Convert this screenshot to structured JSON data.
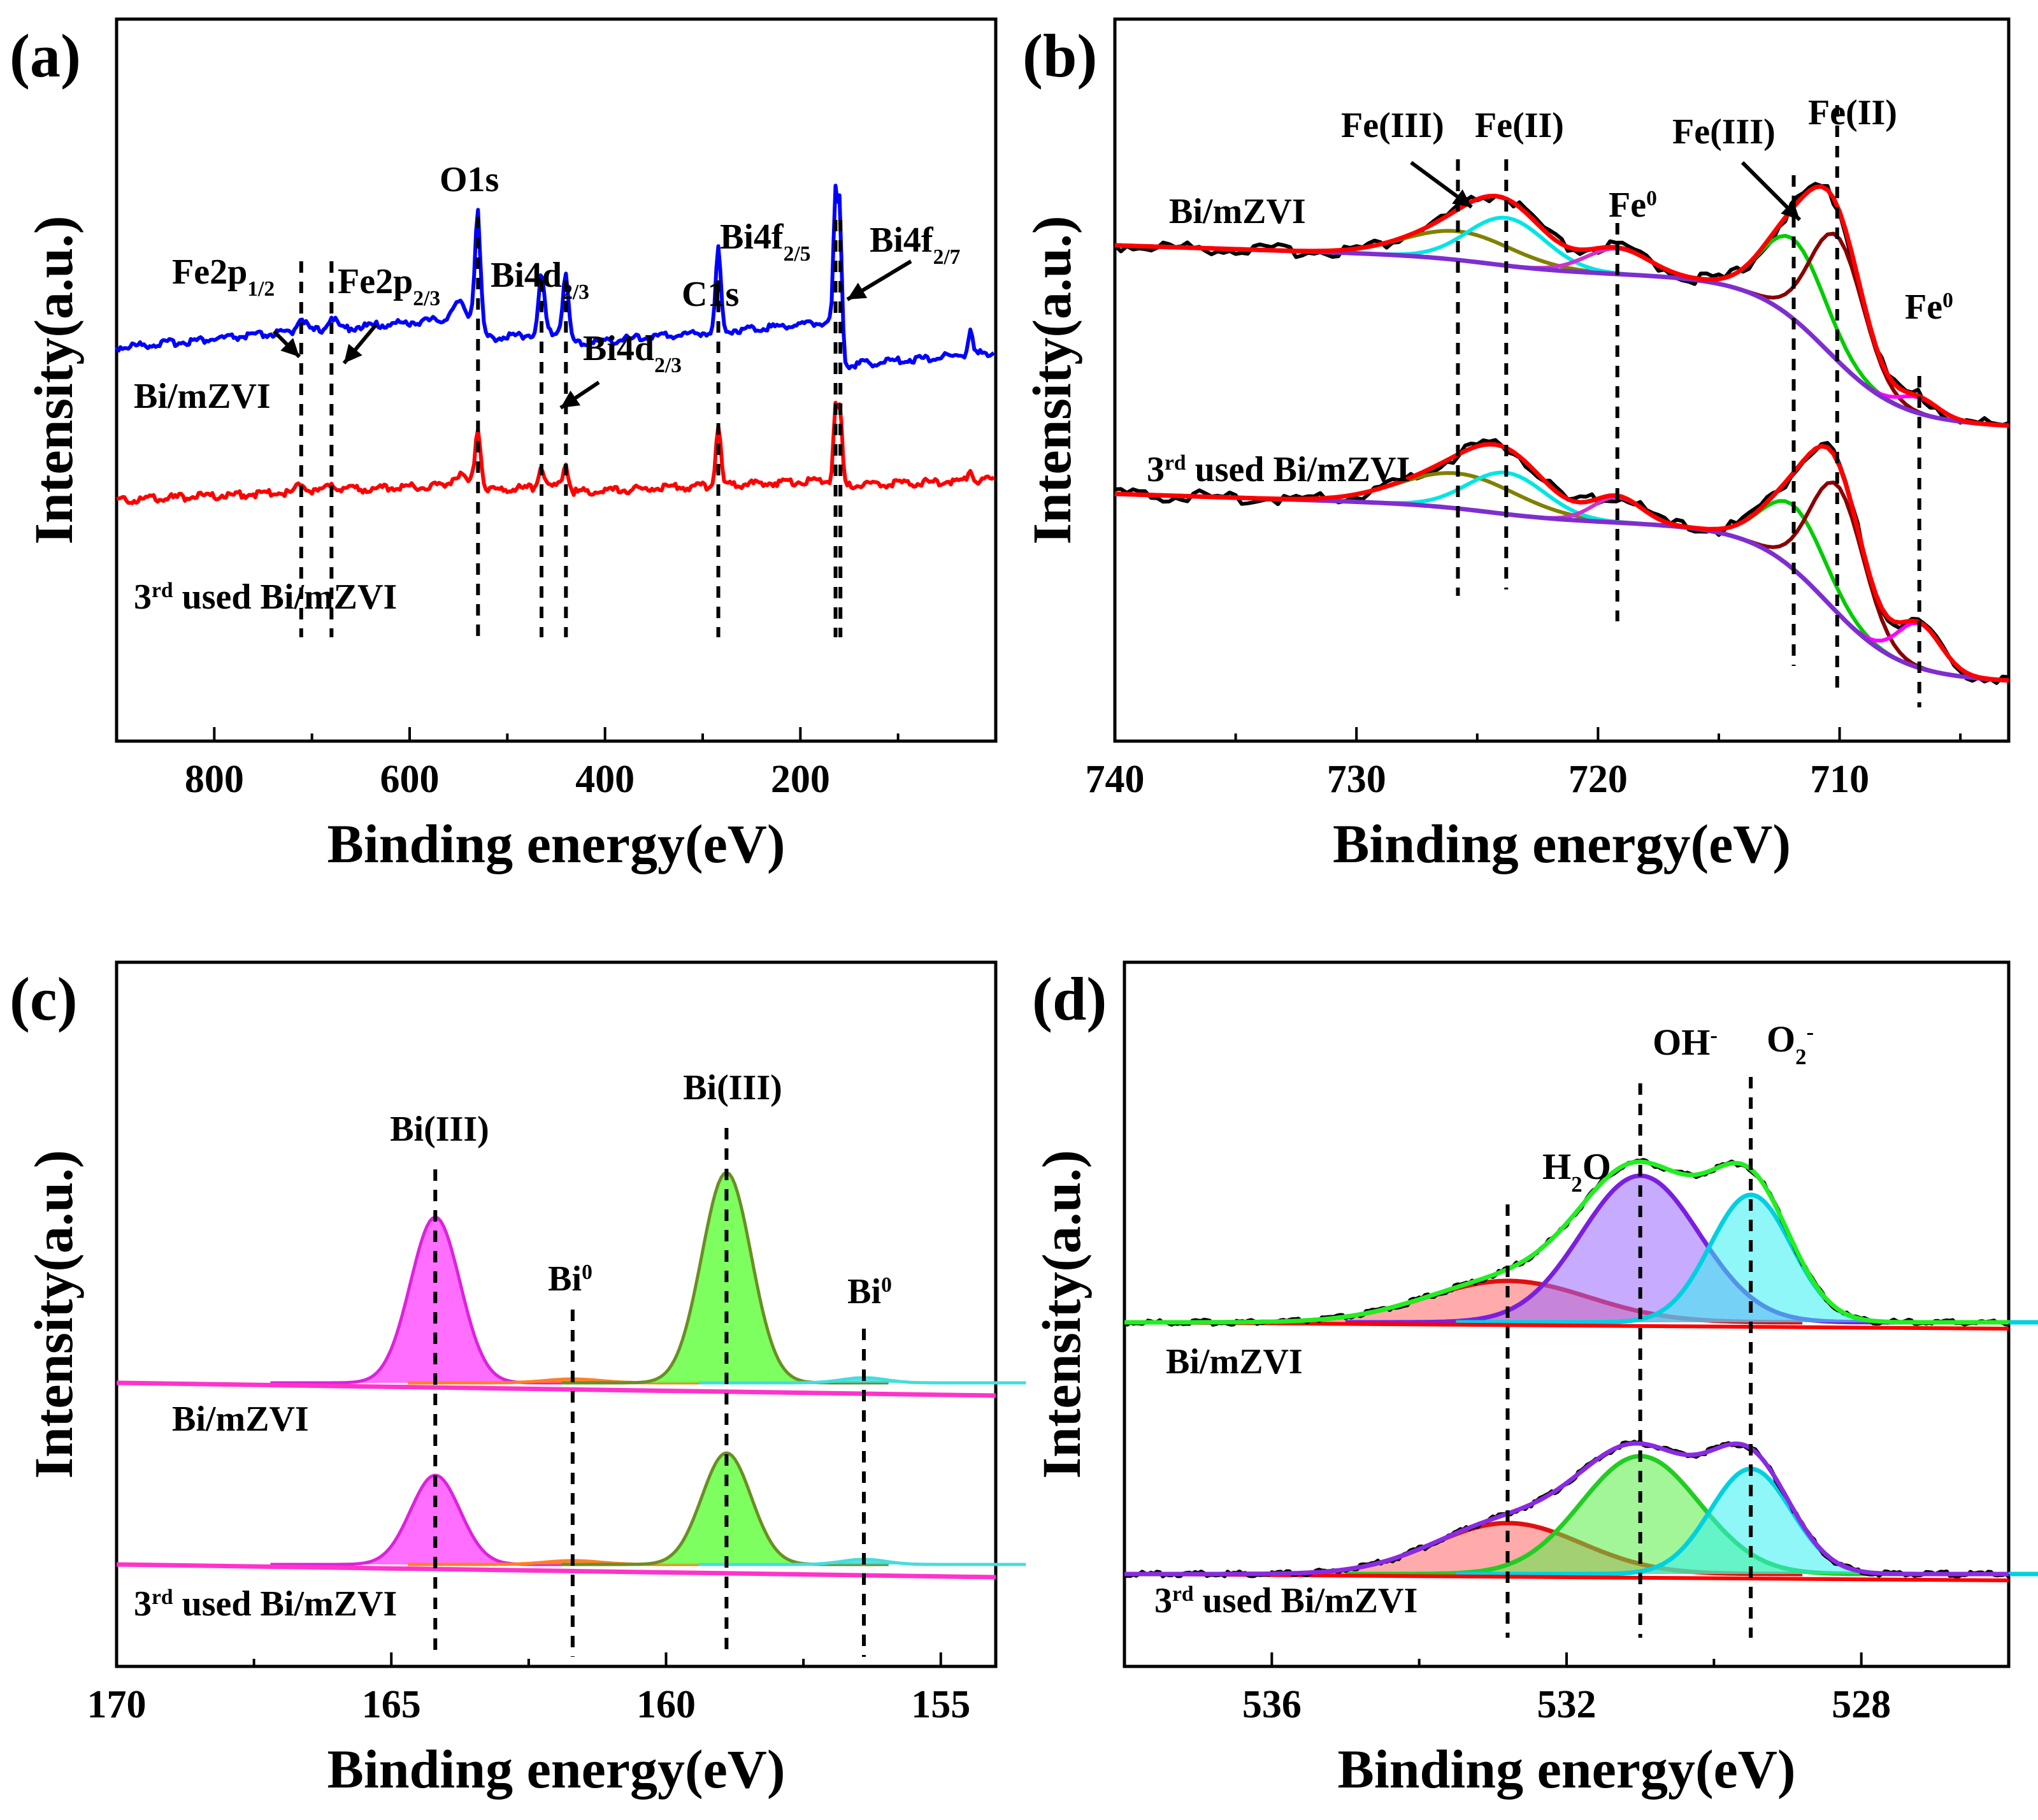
{
  "chart_data": [
    {
      "type": "line",
      "panel": "(a)",
      "xlabel": "Binding energy(eV)",
      "ylabel": "Intensity(a.u.)",
      "xlim": [
        900,
        0
      ],
      "ticks": [
        800,
        600,
        400,
        200
      ],
      "series": [
        {
          "name": "Bi/mZVI",
          "color": "#0000ff"
        },
        {
          "name": "3rd used Bi/mZVI",
          "color": "#ff0000"
        }
      ],
      "series_labels": {
        "top": "Bi/mZVI",
        "bottom": "used Bi/mZVI",
        "bottom_sup": "rd",
        "bottom_pre": "3"
      },
      "peaks": [
        {
          "label": "Fe2p",
          "sub": "1/2",
          "x": 711
        },
        {
          "label": "Fe2p",
          "sub": "2/3",
          "x": 680
        },
        {
          "label": "O1s",
          "sub": "",
          "x": 530
        },
        {
          "label": "Bi4d",
          "sub": "2/3",
          "x": 465
        },
        {
          "label": "Bi4d",
          "sub": "2/3",
          "x": 440
        },
        {
          "label": "C1s",
          "sub": "",
          "x": 284
        },
        {
          "label": "Bi4f",
          "sub": "2/5",
          "x": 164
        },
        {
          "label": "Bi4f",
          "sub": "2/7",
          "x": 159
        }
      ]
    },
    {
      "type": "line",
      "panel": "(b)",
      "xlabel": "Binding energy(eV)",
      "ylabel": "Intensity(a.u.)",
      "xlim": [
        740,
        703
      ],
      "ticks": [
        740,
        730,
        720,
        710
      ],
      "series_labels": {
        "top": "Bi/mZVI",
        "bottom": "used Bi/mZVI",
        "bottom_sup": "rd",
        "bottom_pre": "3"
      },
      "components": [
        {
          "name": "Fe(III) 2p1/2",
          "center": 725.8,
          "color": "#808000"
        },
        {
          "name": "Fe(II) 2p1/2",
          "center": 723.8,
          "color": "#00e5e5"
        },
        {
          "name": "Fe0 / satellite",
          "center": 719.2,
          "color": "#cc33cc"
        },
        {
          "name": "Fe(III) 2p3/2",
          "center": 711.9,
          "color": "#00cc00"
        },
        {
          "name": "Fe(II) 2p3/2",
          "center": 710.1,
          "color": "#8b0000"
        },
        {
          "name": "Fe0",
          "center": 706.7,
          "color": "#ff00ff"
        }
      ],
      "annotations": [
        {
          "text": "Fe(III)",
          "x": 725.8
        },
        {
          "text": "Fe(II)",
          "x": 723.8
        },
        {
          "text": "Fe",
          "sup": "0",
          "x": 719.2
        },
        {
          "text": "Fe(III)",
          "x": 711.9
        },
        {
          "text": "Fe(II)",
          "x": 710.1
        },
        {
          "text": "Fe",
          "sup": "0",
          "x": 706.7
        }
      ]
    },
    {
      "type": "area",
      "panel": "(c)",
      "xlabel": "Binding energy(eV)",
      "ylabel": "Intensity(a.u.)",
      "xlim": [
        170,
        154
      ],
      "ticks": [
        170,
        165,
        160,
        155
      ],
      "series_labels": {
        "top": "Bi/mZVI",
        "bottom": "used Bi/mZVI",
        "bottom_sup": "rd",
        "bottom_pre": "3"
      },
      "components": [
        {
          "name": "Bi(III) 4f5/2",
          "center": 164.2,
          "color": "#ff55ff"
        },
        {
          "name": "Bi0 4f5/2",
          "center": 161.7,
          "color": "#ff7f27"
        },
        {
          "name": "Bi(III) 4f7/2",
          "center": 158.9,
          "color": "#66ff44"
        },
        {
          "name": "Bi0 4f7/2",
          "center": 156.4,
          "color": "#44dddd"
        }
      ],
      "annotations": [
        {
          "text": "Bi(III)",
          "x": 164.2
        },
        {
          "text": "Bi",
          "sup": "0",
          "x": 161.7
        },
        {
          "text": "Bi(III)",
          "x": 158.9
        },
        {
          "text": "Bi",
          "sup": "0",
          "x": 156.4
        }
      ]
    },
    {
      "type": "area",
      "panel": "(d)",
      "xlabel": "Binding energy(eV)",
      "ylabel": "Intensity(a.u.)",
      "xlim": [
        538,
        526
      ],
      "ticks": [
        536,
        532,
        528
      ],
      "series_labels": {
        "top": "Bi/mZVI",
        "bottom": "used Bi/mZVI",
        "bottom_sup": "rd",
        "bottom_pre": "3"
      },
      "components": [
        {
          "name": "H2O",
          "center": 532.8
        },
        {
          "name": "OH-",
          "center": 531.0
        },
        {
          "name": "O2-",
          "center": 529.5
        }
      ],
      "annotations": [
        {
          "text": "H",
          "sub": "2",
          "tail": "O",
          "x": 532.8
        },
        {
          "text": "OH",
          "sup": "-",
          "x": 531.0
        },
        {
          "text": "O",
          "sub": "2",
          "sup": "-",
          "x": 529.5
        }
      ]
    }
  ]
}
